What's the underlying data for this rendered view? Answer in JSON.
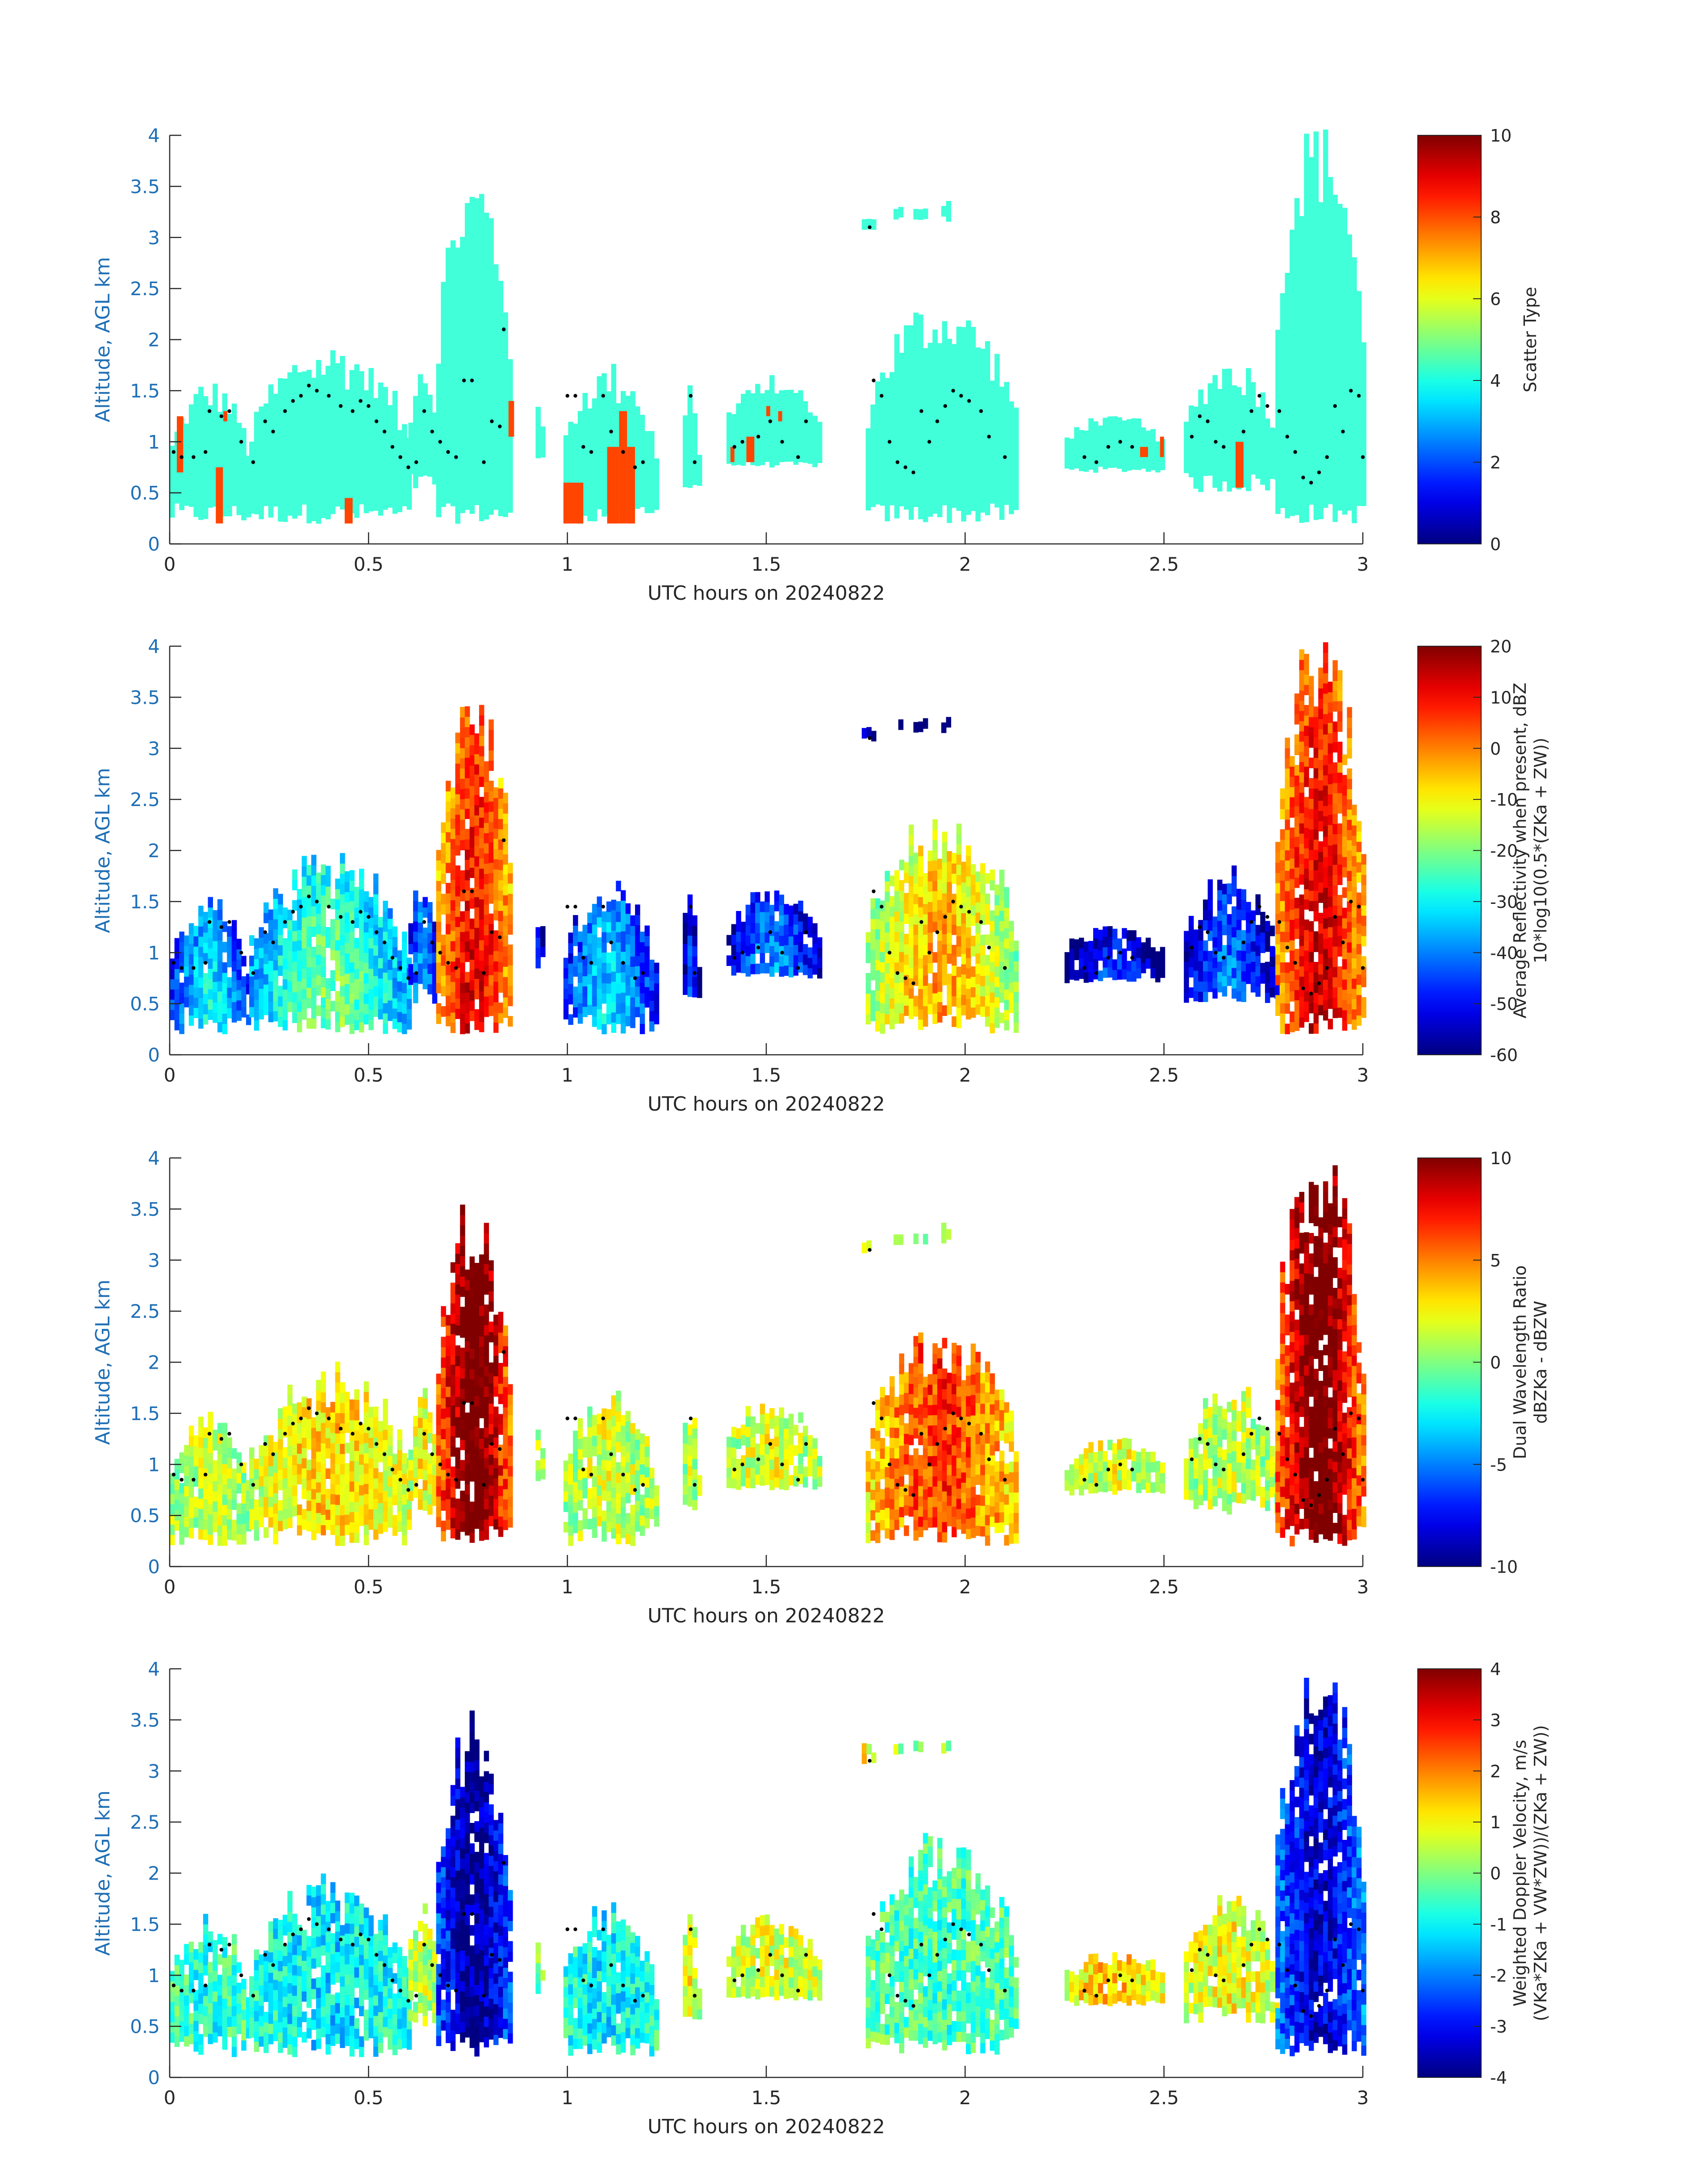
{
  "colors": {
    "axis_text": "#1f6fb5",
    "text": "#262626",
    "axis_line": "#262626",
    "scatter_cloud": "#40ffd9",
    "scatter_precip": "#ff4500",
    "hydrometeor_dot": "#000000"
  },
  "colormap": "jet",
  "chart_data": [
    {
      "type": "heatmap",
      "xlabel": "UTC hours on 20240822",
      "ylabel": "Altitude, AGL km",
      "xlim": [
        0,
        3
      ],
      "ylim": [
        0,
        4
      ],
      "xticks": [
        0,
        0.5,
        1,
        1.5,
        2,
        2.5,
        3
      ],
      "xtick_labels": [
        "0",
        "0.5",
        "1",
        "1.5",
        "2",
        "2.5",
        "3"
      ],
      "yticks": [
        0,
        0.5,
        1,
        1.5,
        2,
        2.5,
        3,
        3.5,
        4
      ],
      "ytick_labels": [
        "0",
        "0.5",
        "1",
        "1.5",
        "2",
        "2.5",
        "3",
        "3.5",
        "4"
      ],
      "colorbar": {
        "label": "Scatter Type",
        "label_lines": [
          "Scatter Type"
        ],
        "clim": [
          0,
          10
        ],
        "ticks": [
          0,
          2,
          4,
          6,
          8,
          10
        ],
        "tick_labels": [
          "0",
          "2",
          "4",
          "6",
          "8",
          "10"
        ]
      },
      "field": "scatter_type",
      "grid": false
    },
    {
      "type": "heatmap",
      "xlabel": "UTC hours on 20240822",
      "ylabel": "Altitude, AGL km",
      "xlim": [
        0,
        3
      ],
      "ylim": [
        0,
        4
      ],
      "xticks": [
        0,
        0.5,
        1,
        1.5,
        2,
        2.5,
        3
      ],
      "xtick_labels": [
        "0",
        "0.5",
        "1",
        "1.5",
        "2",
        "2.5",
        "3"
      ],
      "yticks": [
        0,
        0.5,
        1,
        1.5,
        2,
        2.5,
        3,
        3.5,
        4
      ],
      "ytick_labels": [
        "0",
        "0.5",
        "1",
        "1.5",
        "2",
        "2.5",
        "3",
        "3.5",
        "4"
      ],
      "colorbar": {
        "label": "Average Reflectivity when present, dBZ 10*log10(0.5*(ZKa + ZW))",
        "label_lines": [
          "Average Reflectivity when present, dBZ",
          "10*log10(0.5*(ZKa + ZW))"
        ],
        "clim": [
          -60,
          20
        ],
        "ticks": [
          -60,
          -50,
          -40,
          -30,
          -20,
          -10,
          0,
          10,
          20
        ],
        "tick_labels": [
          "-60",
          "-50",
          "-40",
          "-30",
          "-20",
          "-10",
          "0",
          "10",
          "20"
        ]
      },
      "field": "reflectivity",
      "grid": false
    },
    {
      "type": "heatmap",
      "xlabel": "UTC hours on 20240822",
      "ylabel": "Altitude, AGL km",
      "xlim": [
        0,
        3
      ],
      "ylim": [
        0,
        4
      ],
      "xticks": [
        0,
        0.5,
        1,
        1.5,
        2,
        2.5,
        3
      ],
      "xtick_labels": [
        "0",
        "0.5",
        "1",
        "1.5",
        "2",
        "2.5",
        "3"
      ],
      "yticks": [
        0,
        0.5,
        1,
        1.5,
        2,
        2.5,
        3,
        3.5,
        4
      ],
      "ytick_labels": [
        "0",
        "0.5",
        "1",
        "1.5",
        "2",
        "2.5",
        "3",
        "3.5",
        "4"
      ],
      "colorbar": {
        "label": "Dual Wavelength Ratio dBZKa - dBZW",
        "label_lines": [
          "Dual Wavelength Ratio",
          "dBZKa - dBZW"
        ],
        "clim": [
          -10,
          10
        ],
        "ticks": [
          -10,
          -5,
          0,
          5,
          10
        ],
        "tick_labels": [
          "-10",
          "-5",
          "0",
          "5",
          "10"
        ]
      },
      "field": "dwr",
      "grid": false
    },
    {
      "type": "heatmap",
      "xlabel": "UTC hours on 20240822",
      "ylabel": "Altitude, AGL km",
      "xlim": [
        0,
        3
      ],
      "ylim": [
        0,
        4
      ],
      "xticks": [
        0,
        0.5,
        1,
        1.5,
        2,
        2.5,
        3
      ],
      "xtick_labels": [
        "0",
        "0.5",
        "1",
        "1.5",
        "2",
        "2.5",
        "3"
      ],
      "yticks": [
        0,
        0.5,
        1,
        1.5,
        2,
        2.5,
        3,
        3.5,
        4
      ],
      "ytick_labels": [
        "0",
        "0.5",
        "1",
        "1.5",
        "2",
        "2.5",
        "3",
        "3.5",
        "4"
      ],
      "colorbar": {
        "label": "Weighted Doppler Velocity, m/s (VKa*ZKa + VW*ZW))/(ZKa + ZW))",
        "label_lines": [
          "Weighted Doppler Velocity, m/s",
          "(VKa*ZKa + VW*ZW))/(ZKa + ZW))"
        ],
        "clim": [
          -4,
          4
        ],
        "ticks": [
          -4,
          -3,
          -2,
          -1,
          0,
          1,
          2,
          3,
          4
        ],
        "tick_labels": [
          "-4",
          "-3",
          "-2",
          "-1",
          "0",
          "1",
          "2",
          "3",
          "4"
        ]
      },
      "field": "doppler_velocity",
      "grid": false
    }
  ],
  "echo_segments": [
    {
      "t0": 0.0,
      "t1": 0.2,
      "base": 0.2,
      "top": 1.5,
      "core": -30,
      "dwr": 1.0,
      "vel": -0.6
    },
    {
      "t0": 0.2,
      "t1": 0.6,
      "base": 0.2,
      "top": 1.85,
      "core": -20,
      "dwr": 2.5,
      "vel": -1.0
    },
    {
      "t0": 0.6,
      "t1": 0.67,
      "base": 0.5,
      "top": 1.7,
      "core": -35,
      "dwr": 2.0,
      "vel": 0.4
    },
    {
      "t0": 0.67,
      "t1": 0.86,
      "base": 0.2,
      "top": 3.5,
      "core": 12,
      "dwr": 8.5,
      "vel": -3.2
    },
    {
      "t0": 0.92,
      "t1": 0.94,
      "base": 0.8,
      "top": 1.3,
      "core": -45,
      "dwr": 1.0,
      "vel": 0.0
    },
    {
      "t0": 0.99,
      "t1": 1.22,
      "base": 0.2,
      "top": 1.65,
      "core": -32,
      "dwr": 1.2,
      "vel": -0.9
    },
    {
      "t0": 1.29,
      "t1": 1.33,
      "base": 0.55,
      "top": 1.5,
      "core": -45,
      "dwr": 1.0,
      "vel": 0.8
    },
    {
      "t0": 1.4,
      "t1": 1.63,
      "base": 0.75,
      "top": 1.55,
      "core": -38,
      "dwr": 1.5,
      "vel": 0.6
    },
    {
      "t0": 1.75,
      "t1": 2.13,
      "base": 0.2,
      "top": 2.25,
      "core": -2,
      "dwr": 5.0,
      "vel": -0.4
    },
    {
      "t0": 2.25,
      "t1": 2.5,
      "base": 0.7,
      "top": 1.2,
      "core": -45,
      "dwr": 1.5,
      "vel": 1.2
    },
    {
      "t0": 2.55,
      "t1": 2.78,
      "base": 0.5,
      "top": 1.7,
      "core": -40,
      "dwr": 1.0,
      "vel": 0.8
    },
    {
      "t0": 2.78,
      "t1": 3.0,
      "base": 0.2,
      "top": 4.0,
      "core": 14,
      "dwr": 8.5,
      "vel": -2.8
    }
  ],
  "precip_columns": [
    {
      "t0": 0.018,
      "t1": 0.034,
      "base": 0.7,
      "top": 1.25
    },
    {
      "t0": 0.116,
      "t1": 0.134,
      "base": 0.2,
      "top": 0.75
    },
    {
      "t0": 0.135,
      "t1": 0.145,
      "base": 1.2,
      "top": 1.3
    },
    {
      "t0": 0.44,
      "t1": 0.46,
      "base": 0.2,
      "top": 0.45
    },
    {
      "t0": 0.852,
      "t1": 0.866,
      "base": 1.05,
      "top": 1.4
    },
    {
      "t0": 0.99,
      "t1": 1.04,
      "base": 0.2,
      "top": 0.6
    },
    {
      "t0": 1.1,
      "t1": 1.13,
      "base": 0.2,
      "top": 0.95
    },
    {
      "t0": 1.13,
      "t1": 1.15,
      "base": 0.2,
      "top": 1.3
    },
    {
      "t0": 1.15,
      "t1": 1.17,
      "base": 0.2,
      "top": 0.95
    },
    {
      "t0": 1.41,
      "t1": 1.42,
      "base": 0.8,
      "top": 0.95
    },
    {
      "t0": 1.45,
      "t1": 1.47,
      "base": 0.8,
      "top": 1.05
    },
    {
      "t0": 1.5,
      "t1": 1.51,
      "base": 1.25,
      "top": 1.35
    },
    {
      "t0": 1.53,
      "t1": 1.54,
      "base": 1.2,
      "top": 1.3
    },
    {
      "t0": 2.44,
      "t1": 2.46,
      "base": 0.85,
      "top": 0.95
    },
    {
      "t0": 2.49,
      "t1": 2.5,
      "base": 0.85,
      "top": 1.05
    },
    {
      "t0": 2.68,
      "t1": 2.7,
      "base": 0.55,
      "top": 1.0
    }
  ],
  "isolated_echoes": [
    {
      "t0": 1.74,
      "t1": 1.765,
      "base": 3.05,
      "top": 3.2,
      "core": -50,
      "dwr": 1.0,
      "vel": 1.0
    },
    {
      "t0": 1.82,
      "t1": 1.84,
      "base": 3.15,
      "top": 3.25,
      "core": -55,
      "dwr": 1.0,
      "vel": 0.2
    },
    {
      "t0": 1.87,
      "t1": 1.9,
      "base": 3.15,
      "top": 3.25,
      "core": -55,
      "dwr": 1.0,
      "vel": 0.2
    },
    {
      "t0": 1.94,
      "t1": 1.96,
      "base": 3.15,
      "top": 3.3,
      "core": -55,
      "dwr": 1.0,
      "vel": 0.2
    }
  ],
  "hydrometeor_dots": [
    [
      0.01,
      0.9
    ],
    [
      0.03,
      0.85
    ],
    [
      0.06,
      0.85
    ],
    [
      0.09,
      0.9
    ],
    [
      0.1,
      1.3
    ],
    [
      0.13,
      1.25
    ],
    [
      0.15,
      1.3
    ],
    [
      0.18,
      1.0
    ],
    [
      0.21,
      0.8
    ],
    [
      0.24,
      1.2
    ],
    [
      0.26,
      1.1
    ],
    [
      0.29,
      1.3
    ],
    [
      0.31,
      1.4
    ],
    [
      0.33,
      1.45
    ],
    [
      0.35,
      1.55
    ],
    [
      0.37,
      1.5
    ],
    [
      0.4,
      1.45
    ],
    [
      0.43,
      1.35
    ],
    [
      0.46,
      1.3
    ],
    [
      0.48,
      1.4
    ],
    [
      0.5,
      1.35
    ],
    [
      0.52,
      1.2
    ],
    [
      0.54,
      1.1
    ],
    [
      0.56,
      0.95
    ],
    [
      0.58,
      0.85
    ],
    [
      0.6,
      0.75
    ],
    [
      0.62,
      0.8
    ],
    [
      0.64,
      1.3
    ],
    [
      0.66,
      1.1
    ],
    [
      0.68,
      1.0
    ],
    [
      0.7,
      0.9
    ],
    [
      0.72,
      0.85
    ],
    [
      0.74,
      1.6
    ],
    [
      0.76,
      1.6
    ],
    [
      0.79,
      0.8
    ],
    [
      0.81,
      1.2
    ],
    [
      0.83,
      1.15
    ],
    [
      0.84,
      2.1
    ],
    [
      1.0,
      1.45
    ],
    [
      1.02,
      1.45
    ],
    [
      1.04,
      0.95
    ],
    [
      1.06,
      0.9
    ],
    [
      1.09,
      1.45
    ],
    [
      1.11,
      1.1
    ],
    [
      1.14,
      0.9
    ],
    [
      1.17,
      0.75
    ],
    [
      1.19,
      0.8
    ],
    [
      1.31,
      1.45
    ],
    [
      1.32,
      0.8
    ],
    [
      1.42,
      0.95
    ],
    [
      1.44,
      1.0
    ],
    [
      1.48,
      1.05
    ],
    [
      1.51,
      1.2
    ],
    [
      1.54,
      1.0
    ],
    [
      1.58,
      0.85
    ],
    [
      1.6,
      1.2
    ],
    [
      1.76,
      3.1
    ],
    [
      1.77,
      1.6
    ],
    [
      1.79,
      1.45
    ],
    [
      1.81,
      1.0
    ],
    [
      1.83,
      0.8
    ],
    [
      1.85,
      0.75
    ],
    [
      1.87,
      0.7
    ],
    [
      1.89,
      1.3
    ],
    [
      1.91,
      1.0
    ],
    [
      1.93,
      1.2
    ],
    [
      1.95,
      1.35
    ],
    [
      1.97,
      1.5
    ],
    [
      1.99,
      1.45
    ],
    [
      2.01,
      1.4
    ],
    [
      2.04,
      1.3
    ],
    [
      2.06,
      1.05
    ],
    [
      2.1,
      0.85
    ],
    [
      2.3,
      0.85
    ],
    [
      2.33,
      0.8
    ],
    [
      2.36,
      0.95
    ],
    [
      2.39,
      1.0
    ],
    [
      2.42,
      0.95
    ],
    [
      2.57,
      1.05
    ],
    [
      2.59,
      1.25
    ],
    [
      2.61,
      1.2
    ],
    [
      2.63,
      1.0
    ],
    [
      2.65,
      0.95
    ],
    [
      2.7,
      1.1
    ],
    [
      2.72,
      1.3
    ],
    [
      2.74,
      1.45
    ],
    [
      2.76,
      1.35
    ],
    [
      2.79,
      1.3
    ],
    [
      2.81,
      1.05
    ],
    [
      2.83,
      0.9
    ],
    [
      2.85,
      0.65
    ],
    [
      2.87,
      0.6
    ],
    [
      2.89,
      0.7
    ],
    [
      2.91,
      0.85
    ],
    [
      2.93,
      1.35
    ],
    [
      2.95,
      1.1
    ],
    [
      2.97,
      1.5
    ],
    [
      2.99,
      1.45
    ],
    [
      3.0,
      0.85
    ]
  ]
}
